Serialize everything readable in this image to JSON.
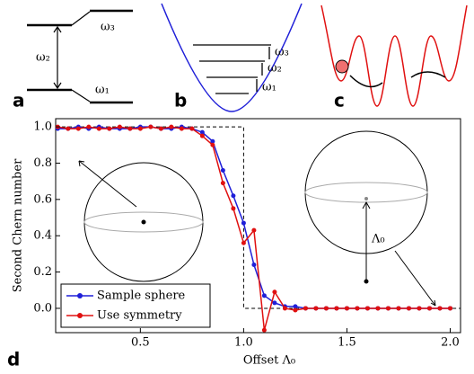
{
  "diagrams": {
    "a": {
      "label": "a",
      "texts": [
        "ω₃",
        "ω₂",
        "ω₁"
      ]
    },
    "b": {
      "label": "b",
      "texts": [
        "ω₃",
        "ω₂",
        "ω₁"
      ]
    },
    "c": {
      "label": "c"
    }
  },
  "insets": {
    "right_label": "Λ₀"
  },
  "chart_data": {
    "type": "line",
    "panel_label": "d",
    "x_label": "Offset Λ₀",
    "y_label": "Second Chern number",
    "x": [
      0.1,
      0.15,
      0.2,
      0.25,
      0.3,
      0.35,
      0.4,
      0.45,
      0.5,
      0.55,
      0.6,
      0.65,
      0.7,
      0.75,
      0.8,
      0.85,
      0.9,
      0.95,
      1.0,
      1.05,
      1.1,
      1.15,
      1.2,
      1.25,
      1.3,
      1.35,
      1.4,
      1.45,
      1.5,
      1.55,
      1.6,
      1.65,
      1.7,
      1.75,
      1.8,
      1.85,
      1.9,
      1.95,
      2.0
    ],
    "series": [
      {
        "name": "Sample sphere",
        "color": "#1f1fd8",
        "values": [
          0.99,
          0.99,
          1.0,
          0.99,
          1.0,
          0.99,
          0.99,
          0.99,
          1.0,
          1.0,
          0.99,
          0.99,
          1.0,
          0.99,
          0.97,
          0.92,
          0.76,
          0.62,
          0.47,
          0.24,
          0.07,
          0.03,
          0.01,
          0.01,
          0,
          0,
          0,
          0,
          0,
          0,
          0,
          0,
          0,
          0,
          0,
          0,
          0,
          0,
          0
        ]
      },
      {
        "name": "Use symmetry",
        "color": "#e01010",
        "values": [
          1.0,
          0.99,
          0.99,
          1.0,
          0.99,
          0.99,
          1.0,
          0.99,
          0.99,
          1.0,
          0.99,
          1.0,
          0.99,
          0.99,
          0.95,
          0.9,
          0.69,
          0.55,
          0.36,
          0.43,
          -0.12,
          0.09,
          0.0,
          -0.01,
          0,
          0,
          0,
          0,
          0,
          0,
          0,
          0,
          0,
          0,
          0,
          0,
          0,
          0,
          0
        ]
      }
    ],
    "reference": {
      "x": [
        0.09,
        1.0,
        1.0,
        2.05
      ],
      "values": [
        1,
        1,
        0,
        0
      ]
    },
    "xlim": [
      0.09,
      2.05
    ],
    "ylim": [
      -0.134,
      1.045
    ],
    "xticks": [
      0.5,
      {
        "value": 1.0,
        "label": "1.0"
      },
      1.5,
      {
        "value": 2.0,
        "label": "2.0"
      }
    ],
    "yticks": [
      {
        "value": 0,
        "label": "0.0"
      },
      0.2,
      0.4,
      0.6,
      0.8,
      {
        "value": 1.0,
        "label": "1.0"
      }
    ],
    "legend": "lower left"
  }
}
